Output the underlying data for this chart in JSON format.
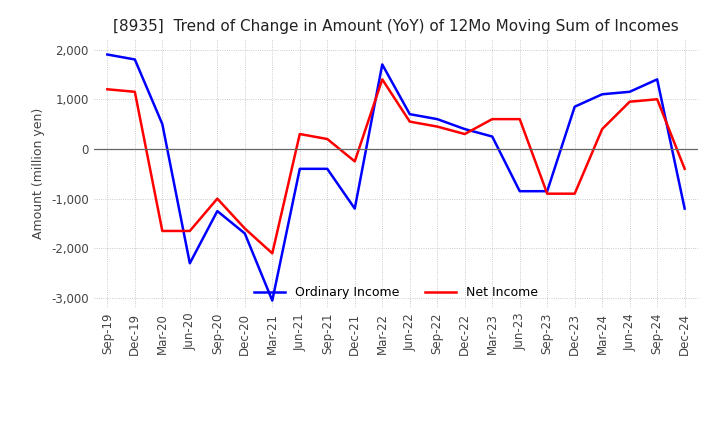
{
  "title": "[8935]  Trend of Change in Amount (YoY) of 12Mo Moving Sum of Incomes",
  "ylabel": "Amount (million yen)",
  "ylim": [
    -3200,
    2200
  ],
  "yticks": [
    -3000,
    -2000,
    -1000,
    0,
    1000,
    2000
  ],
  "x_labels": [
    "Sep-19",
    "Dec-19",
    "Mar-20",
    "Jun-20",
    "Sep-20",
    "Dec-20",
    "Mar-21",
    "Jun-21",
    "Sep-21",
    "Dec-21",
    "Mar-22",
    "Jun-22",
    "Sep-22",
    "Dec-22",
    "Mar-23",
    "Jun-23",
    "Sep-23",
    "Dec-23",
    "Mar-24",
    "Jun-24",
    "Sep-24",
    "Dec-24"
  ],
  "ordinary_income": [
    1900,
    1800,
    500,
    -2300,
    -1250,
    -1700,
    -3050,
    -400,
    -400,
    -1200,
    1700,
    700,
    600,
    400,
    250,
    -850,
    -850,
    850,
    1100,
    1150,
    1400,
    -1200
  ],
  "net_income": [
    1200,
    1150,
    -1650,
    -1650,
    -1000,
    -1600,
    -2100,
    300,
    200,
    -250,
    1400,
    550,
    450,
    300,
    600,
    600,
    -900,
    -900,
    400,
    950,
    1000,
    -400
  ],
  "ordinary_color": "#0000ff",
  "net_color": "#ff0000",
  "background_color": "#ffffff",
  "grid_color": "#bbbbbb",
  "title_fontsize": 11,
  "label_fontsize": 9,
  "tick_fontsize": 8.5
}
